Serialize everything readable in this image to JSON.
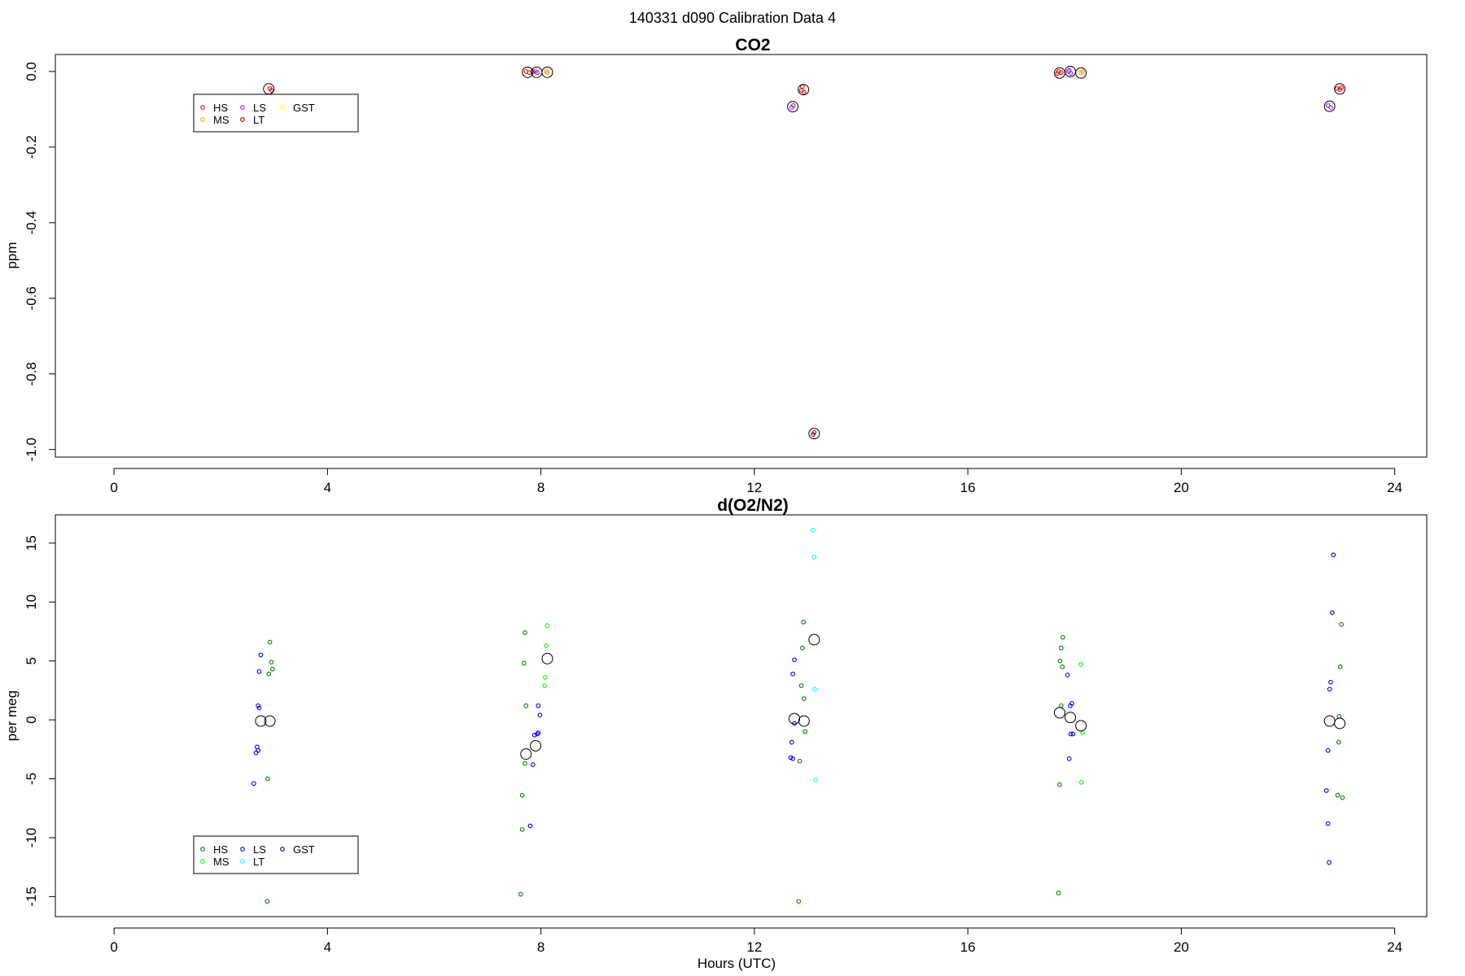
{
  "figure": {
    "title": "140331   d090   Calibration Data 4",
    "xlabel": "Hours (UTC)"
  },
  "chart_data": [
    {
      "type": "scatter",
      "title": "CO2",
      "xlabel": "",
      "ylabel": "ppm",
      "xlim": [
        -1.1,
        24.6
      ],
      "ylim": [
        -1.02,
        0.045
      ],
      "xticks": [
        0,
        4,
        8,
        12,
        16,
        20,
        24
      ],
      "yticks": [
        0.0,
        -0.2,
        -0.4,
        -0.6,
        -0.8,
        -1.0
      ],
      "ytick_labels": [
        "0.0",
        "-0.2",
        "-0.4",
        "-0.6",
        "-0.8",
        "-1.0"
      ],
      "grid": false,
      "legend_position": "top-left",
      "legend": [
        {
          "name": "HS",
          "color": "#ff0000"
        },
        {
          "name": "MS",
          "color": "#ffa500"
        },
        {
          "name": "LS",
          "color": "#a020f0"
        },
        {
          "name": "LT",
          "color": "#8b0000"
        },
        {
          "name": "GST",
          "color": "#ffff00"
        }
      ],
      "series": [
        {
          "name": "HS",
          "color": "#ff0000",
          "points": [
            [
              2.92,
              -0.045
            ],
            [
              2.95,
              -0.05
            ],
            [
              7.72,
              0.0
            ],
            [
              7.78,
              -0.003
            ],
            [
              7.85,
              0.0
            ],
            [
              12.88,
              -0.05
            ],
            [
              12.9,
              -0.04
            ],
            [
              12.93,
              -0.055
            ],
            [
              17.68,
              -0.005
            ],
            [
              17.75,
              -0.003
            ],
            [
              17.7,
              0.0
            ],
            [
              22.92,
              -0.045
            ],
            [
              22.97,
              -0.048
            ],
            [
              23.0,
              -0.043
            ]
          ]
        },
        {
          "name": "MS",
          "color": "#ffa500",
          "points": [
            [
              8.1,
              0.0
            ],
            [
              8.12,
              -0.003
            ],
            [
              18.12,
              -0.003
            ],
            [
              18.15,
              0.0
            ]
          ]
        },
        {
          "name": "LS",
          "color": "#a020f0",
          "points": [
            [
              7.9,
              0.0
            ],
            [
              7.93,
              -0.003
            ],
            [
              12.7,
              -0.095
            ],
            [
              12.73,
              -0.09
            ],
            [
              17.88,
              0.0
            ],
            [
              17.9,
              0.003
            ],
            [
              17.93,
              -0.005
            ],
            [
              22.75,
              -0.09
            ],
            [
              22.8,
              -0.095
            ]
          ]
        },
        {
          "name": "LT",
          "color": "#8b0000",
          "points": [
            [
              13.1,
              -0.96
            ],
            [
              13.12,
              -0.955
            ]
          ]
        }
      ],
      "means": [
        [
          2.9,
          -0.046
        ],
        [
          7.75,
          -0.002
        ],
        [
          7.92,
          -0.002
        ],
        [
          8.12,
          -0.002
        ],
        [
          12.72,
          -0.093
        ],
        [
          12.92,
          -0.048
        ],
        [
          13.12,
          -0.958
        ],
        [
          17.72,
          -0.004
        ],
        [
          17.92,
          0.0
        ],
        [
          18.12,
          -0.004
        ],
        [
          22.78,
          -0.092
        ],
        [
          22.97,
          -0.046
        ]
      ]
    },
    {
      "type": "scatter",
      "title": "d(O2/N2)",
      "xlabel": "Hours (UTC)",
      "ylabel": "per meg",
      "xlim": [
        -1.1,
        24.6
      ],
      "ylim": [
        -16.7,
        17.4
      ],
      "xticks": [
        0,
        4,
        8,
        12,
        16,
        20,
        24
      ],
      "yticks": [
        15,
        10,
        5,
        0,
        -5,
        -10,
        -15
      ],
      "ytick_labels": [
        "15",
        "10",
        "5",
        "0",
        "-5",
        "-10",
        "-15"
      ],
      "grid": false,
      "legend_position": "bottom-left",
      "legend": [
        {
          "name": "HS",
          "color": "#008000"
        },
        {
          "name": "MS",
          "color": "#00ff00"
        },
        {
          "name": "LS",
          "color": "#0000ff"
        },
        {
          "name": "LT",
          "color": "#00ffff"
        },
        {
          "name": "GST",
          "color": "#00008b"
        }
      ],
      "series": [
        {
          "name": "HS",
          "color": "#008000",
          "points": [
            [
              2.92,
              6.6
            ],
            [
              2.95,
              4.9
            ],
            [
              2.9,
              3.9
            ],
            [
              2.97,
              4.3
            ],
            [
              2.88,
              -5.0
            ],
            [
              2.87,
              -15.4
            ],
            [
              7.7,
              7.4
            ],
            [
              7.68,
              4.8
            ],
            [
              7.72,
              1.2
            ],
            [
              7.7,
              -3.7
            ],
            [
              7.65,
              -6.4
            ],
            [
              7.65,
              -9.3
            ],
            [
              7.62,
              -14.8
            ],
            [
              12.92,
              8.3
            ],
            [
              12.9,
              6.1
            ],
            [
              12.88,
              2.9
            ],
            [
              12.93,
              1.8
            ],
            [
              12.95,
              -1.0
            ],
            [
              12.85,
              -3.5
            ],
            [
              12.83,
              -15.4
            ],
            [
              17.78,
              7.0
            ],
            [
              17.75,
              6.1
            ],
            [
              17.73,
              5.0
            ],
            [
              17.77,
              4.5
            ],
            [
              17.75,
              1.2
            ],
            [
              17.72,
              -5.5
            ],
            [
              17.7,
              -14.7
            ],
            [
              23.0,
              8.1
            ],
            [
              22.98,
              4.5
            ],
            [
              22.96,
              0.3
            ],
            [
              22.95,
              -1.9
            ],
            [
              22.93,
              -6.4
            ],
            [
              23.02,
              -6.6
            ]
          ]
        },
        {
          "name": "MS",
          "color": "#00ff00",
          "points": [
            [
              8.12,
              8.0
            ],
            [
              8.1,
              6.3
            ],
            [
              8.08,
              3.6
            ],
            [
              8.07,
              2.9
            ],
            [
              18.12,
              4.7
            ],
            [
              18.15,
              -1.1
            ],
            [
              18.13,
              -5.3
            ]
          ]
        },
        {
          "name": "LS",
          "color": "#0000ff",
          "points": [
            [
              2.75,
              5.5
            ],
            [
              2.72,
              4.1
            ],
            [
              2.7,
              1.2
            ],
            [
              2.72,
              1.0
            ],
            [
              2.68,
              -2.3
            ],
            [
              2.66,
              -2.8
            ],
            [
              2.7,
              -2.6
            ],
            [
              2.62,
              -5.4
            ],
            [
              7.95,
              1.2
            ],
            [
              7.98,
              0.4
            ],
            [
              7.93,
              -1.2
            ],
            [
              7.95,
              -1.1
            ],
            [
              7.88,
              -1.3
            ],
            [
              7.85,
              -3.8
            ],
            [
              7.8,
              -9.0
            ],
            [
              12.75,
              5.1
            ],
            [
              12.72,
              3.9
            ],
            [
              12.7,
              -1.9
            ],
            [
              12.68,
              -3.2
            ],
            [
              12.72,
              -3.3
            ],
            [
              12.75,
              -0.3
            ],
            [
              17.95,
              1.4
            ],
            [
              17.92,
              1.2
            ],
            [
              17.97,
              -1.2
            ],
            [
              17.93,
              -1.2
            ],
            [
              17.9,
              -3.3
            ],
            [
              17.87,
              3.8
            ],
            [
              22.83,
              9.1
            ],
            [
              22.8,
              3.2
            ],
            [
              22.78,
              2.6
            ],
            [
              22.75,
              -2.6
            ],
            [
              22.72,
              -6.0
            ],
            [
              22.75,
              -8.8
            ],
            [
              22.77,
              -12.1
            ],
            [
              22.85,
              14.0
            ]
          ]
        },
        {
          "name": "LT",
          "color": "#00ffff",
          "points": [
            [
              13.1,
              16.1
            ],
            [
              13.12,
              13.8
            ],
            [
              13.13,
              2.6
            ],
            [
              13.15,
              -5.1
            ]
          ]
        }
      ],
      "means": [
        [
          2.75,
          -0.1
        ],
        [
          2.92,
          -0.1
        ],
        [
          7.72,
          -2.9
        ],
        [
          7.9,
          -2.2
        ],
        [
          8.12,
          5.2
        ],
        [
          12.75,
          0.1
        ],
        [
          12.93,
          -0.1
        ],
        [
          13.12,
          6.8
        ],
        [
          17.72,
          0.6
        ],
        [
          17.92,
          0.2
        ],
        [
          18.12,
          -0.5
        ],
        [
          22.78,
          -0.1
        ],
        [
          22.97,
          -0.3
        ]
      ]
    }
  ]
}
